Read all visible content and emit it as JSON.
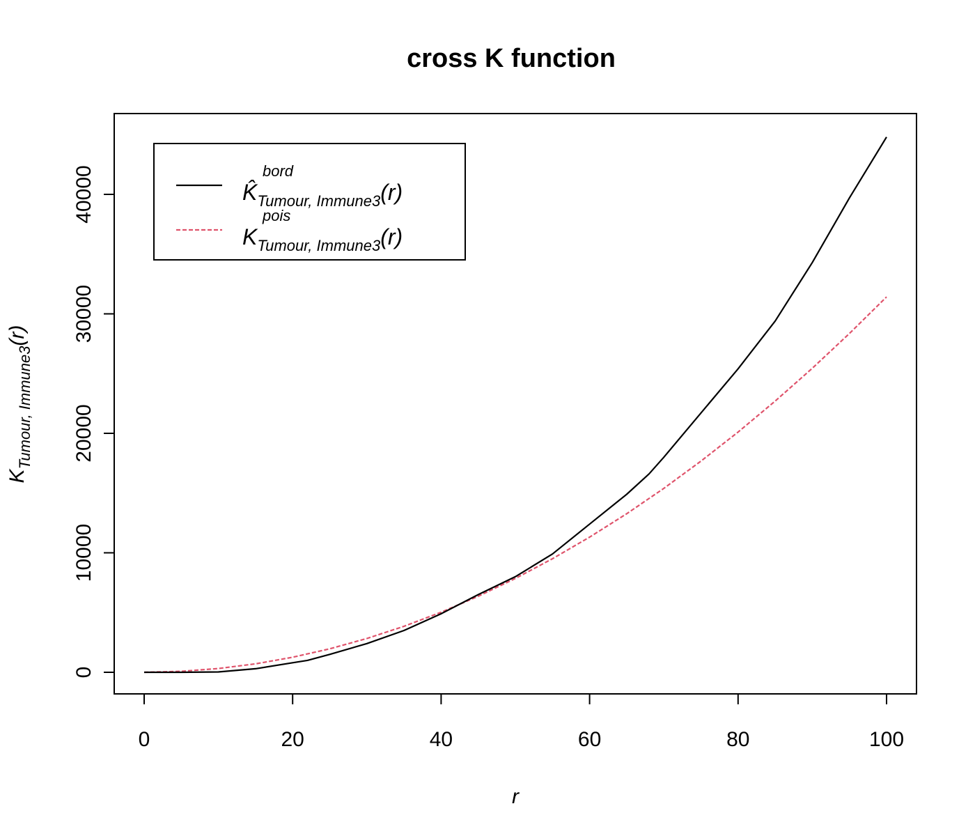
{
  "chart_data": {
    "type": "line",
    "title": "cross K function",
    "xlabel": "r",
    "ylabel": {
      "main": "K",
      "sub": "Tumour, Immune3",
      "suffix": "(r)"
    },
    "xlim": [
      0,
      100
    ],
    "ylim": [
      0,
      45000
    ],
    "xticks": [
      0,
      20,
      40,
      60,
      80,
      100
    ],
    "yticks": [
      0,
      10000,
      20000,
      30000,
      40000
    ],
    "xtick_labels": [
      "0",
      "20",
      "40",
      "60",
      "80",
      "100"
    ],
    "ytick_labels": [
      "0",
      "10000",
      "20000",
      "30000",
      "40000"
    ],
    "grid": false,
    "legend_position": "top-left",
    "series": [
      {
        "key": "bord",
        "legend_main": "K̂",
        "legend_sup": "bord",
        "legend_sub": "Tumour, Immune3",
        "legend_suffix": "(r)",
        "color": "#000000",
        "dash": "solid",
        "x": [
          0,
          5,
          10,
          15,
          20,
          22,
          25,
          30,
          35,
          40,
          45,
          50,
          55,
          60,
          65,
          68,
          70,
          75,
          80,
          85,
          90,
          95,
          100
        ],
        "y": [
          0,
          0,
          30,
          300,
          800,
          1000,
          1500,
          2400,
          3500,
          4900,
          6500,
          8000,
          9900,
          12400,
          14900,
          16600,
          18000,
          21700,
          25400,
          29400,
          34300,
          39700,
          44800
        ]
      },
      {
        "key": "pois",
        "legend_main": "K",
        "legend_sup": "pois",
        "legend_sub": "Tumour, Immune3",
        "legend_suffix": "(r)",
        "color": "#df536b",
        "dash": "dashed",
        "x": [
          0,
          5,
          10,
          15,
          20,
          25,
          30,
          35,
          40,
          45,
          50,
          55,
          60,
          65,
          70,
          75,
          80,
          85,
          90,
          95,
          100
        ],
        "y": [
          0,
          79,
          314,
          707,
          1257,
          1963,
          2827,
          3848,
          5027,
          6362,
          7854,
          9503,
          11310,
          13273,
          15394,
          17671,
          20106,
          22698,
          25447,
          28353,
          31416
        ]
      }
    ]
  }
}
